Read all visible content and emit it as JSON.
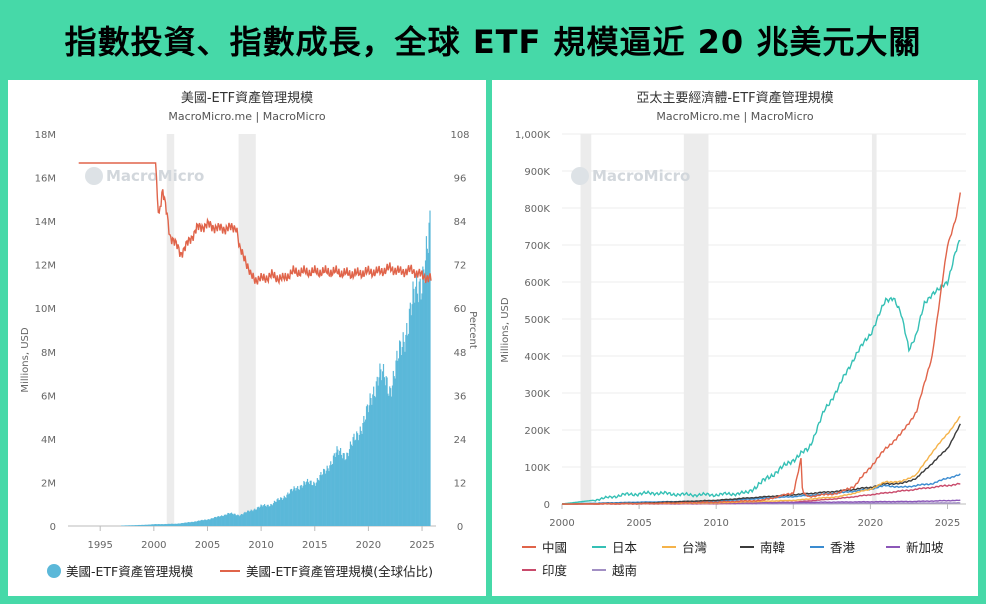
{
  "headline": "指數投資、指數成長，全球 ETF 規模逼近 20 兆美元大關",
  "colors": {
    "background": "#46d9a8",
    "bar_blue": "#5bb8d9",
    "share_red": "#e0644a",
    "recession_gray": "#ececec"
  },
  "chart_data": [
    {
      "type": "bar",
      "title": "美國-ETF資產管理規模",
      "subtitle": "MacroMicro.me | MacroMicro",
      "watermark": "MacroMicro",
      "ylabel": "Millions, USD",
      "y2label": "Percent",
      "ylim": [
        0,
        18000000
      ],
      "y2lim": [
        0,
        108
      ],
      "y_ticks": [
        "0",
        "2M",
        "4M",
        "6M",
        "8M",
        "10M",
        "12M",
        "14M",
        "16M",
        "18M"
      ],
      "y2_ticks": [
        "0",
        "12",
        "24",
        "36",
        "48",
        "60",
        "72",
        "84",
        "96",
        "108"
      ],
      "x_ticks": [
        "1995",
        "2000",
        "2005",
        "2010",
        "2015",
        "2020",
        "2025"
      ],
      "xlim": [
        1992.0,
        2026.3
      ],
      "recessions": [
        [
          2001.2,
          2001.9
        ],
        [
          2007.9,
          2009.5
        ]
      ],
      "series": [
        {
          "name": "美國-ETF資產管理規模",
          "type": "bar",
          "color": "#5bb8d9",
          "points": [
            [
              1993,
              0
            ],
            [
              1995,
              0
            ],
            [
              1997,
              20000
            ],
            [
              1999,
              50000
            ],
            [
              2000,
              80000
            ],
            [
              2001,
              90000
            ],
            [
              2002,
              100000
            ],
            [
              2003,
              150000
            ],
            [
              2004,
              220000
            ],
            [
              2005,
              300000
            ],
            [
              2006,
              420000
            ],
            [
              2007,
              580000
            ],
            [
              2008,
              500000
            ],
            [
              2009,
              700000
            ],
            [
              2010,
              900000
            ],
            [
              2011,
              1000000
            ],
            [
              2012,
              1300000
            ],
            [
              2013,
              1650000
            ],
            [
              2014,
              1950000
            ],
            [
              2015,
              2000000
            ],
            [
              2016,
              2500000
            ],
            [
              2017,
              3350000
            ],
            [
              2018,
              3300000
            ],
            [
              2019,
              4200000
            ],
            [
              2020,
              5300000
            ],
            [
              2021,
              7100000
            ],
            [
              2022,
              6300000
            ],
            [
              2023,
              8000000
            ],
            [
              2024,
              10000000
            ],
            [
              2025,
              11500000
            ],
            [
              2025.5,
              12500000
            ],
            [
              2025.8,
              13500000
            ]
          ]
        },
        {
          "name": "美國-ETF資產管理規模(全球佔比)",
          "type": "line",
          "axis": "right",
          "color": "#e0644a",
          "points": [
            [
              1993,
              100
            ],
            [
              1999,
              100
            ],
            [
              2000.2,
              100
            ],
            [
              2000.3,
              90
            ],
            [
              2000.5,
              86
            ],
            [
              2000.8,
              93
            ],
            [
              2001.2,
              86
            ],
            [
              2001.5,
              80
            ],
            [
              2001.8,
              79
            ],
            [
              2002.5,
              75
            ],
            [
              2003.2,
              78
            ],
            [
              2004,
              82
            ],
            [
              2005,
              83
            ],
            [
              2006,
              82
            ],
            [
              2007,
              82
            ],
            [
              2007.7,
              82.5
            ],
            [
              2008,
              76
            ],
            [
              2008.5,
              74
            ],
            [
              2009,
              69
            ],
            [
              2009.5,
              68
            ],
            [
              2010,
              68
            ],
            [
              2011,
              69
            ],
            [
              2012,
              68
            ],
            [
              2013,
              70
            ],
            [
              2014,
              70
            ],
            [
              2015,
              70
            ],
            [
              2016,
              70
            ],
            [
              2017,
              70
            ],
            [
              2018,
              69.5
            ],
            [
              2019,
              69.5
            ],
            [
              2020,
              70
            ],
            [
              2021,
              70
            ],
            [
              2022,
              71
            ],
            [
              2023,
              70
            ],
            [
              2024,
              70.5
            ],
            [
              2025,
              69
            ],
            [
              2025.9,
              68
            ]
          ]
        }
      ],
      "legend": [
        {
          "label": "美國-ETF資產管理規模",
          "color": "#5bb8d9",
          "symbol": "circle"
        },
        {
          "label": "美國-ETF資產管理規模(全球佔比)",
          "color": "#e0644a",
          "symbol": "line"
        }
      ]
    },
    {
      "type": "line",
      "title": "亞太主要經濟體-ETF資產管理規模",
      "subtitle": "MacroMicro.me | MacroMicro",
      "watermark": "MacroMicro",
      "ylabel": "Millions, USD",
      "ylim": [
        0,
        1000000
      ],
      "y_ticks": [
        "0",
        "100K",
        "200K",
        "300K",
        "400K",
        "500K",
        "600K",
        "700K",
        "800K",
        "900K",
        "1,000K"
      ],
      "x_ticks": [
        "2000",
        "2005",
        "2010",
        "2015",
        "2020",
        "2025"
      ],
      "xlim": [
        2000,
        2026.2
      ],
      "recessions": [
        [
          2001.2,
          2001.9
        ],
        [
          2007.9,
          2009.5
        ],
        [
          2020.1,
          2020.4
        ]
      ],
      "series": [
        {
          "name": "中國",
          "color": "#e0644a",
          "points": [
            [
              2000,
              0
            ],
            [
              2005,
              1000
            ],
            [
              2010,
              5000
            ],
            [
              2013,
              10000
            ],
            [
              2015,
              30000
            ],
            [
              2015.5,
              120000
            ],
            [
              2015.6,
              30000
            ],
            [
              2016,
              20000
            ],
            [
              2017,
              25000
            ],
            [
              2018,
              30000
            ],
            [
              2019,
              50000
            ],
            [
              2020,
              100000
            ],
            [
              2021,
              150000
            ],
            [
              2022,
              190000
            ],
            [
              2023,
              250000
            ],
            [
              2024,
              400000
            ],
            [
              2025,
              700000
            ],
            [
              2025.6,
              780000
            ],
            [
              2025.9,
              860000
            ]
          ]
        },
        {
          "name": "日本",
          "color": "#35c0b5",
          "points": [
            [
              2000,
              0
            ],
            [
              2002,
              10000
            ],
            [
              2004,
              25000
            ],
            [
              2006,
              30000
            ],
            [
              2008,
              25000
            ],
            [
              2010,
              25000
            ],
            [
              2012,
              30000
            ],
            [
              2013,
              60000
            ],
            [
              2014,
              90000
            ],
            [
              2015,
              120000
            ],
            [
              2016,
              150000
            ],
            [
              2017,
              250000
            ],
            [
              2018,
              320000
            ],
            [
              2019,
              400000
            ],
            [
              2020,
              460000
            ],
            [
              2021,
              550000
            ],
            [
              2021.5,
              560000
            ],
            [
              2022,
              510000
            ],
            [
              2022.5,
              420000
            ],
            [
              2023,
              460000
            ],
            [
              2023.5,
              540000
            ],
            [
              2024,
              570000
            ],
            [
              2024.5,
              580000
            ],
            [
              2025,
              600000
            ],
            [
              2025.5,
              680000
            ],
            [
              2025.9,
              720000
            ]
          ]
        },
        {
          "name": "台灣",
          "color": "#f5b34a",
          "points": [
            [
              2000,
              0
            ],
            [
              2005,
              1000
            ],
            [
              2010,
              3000
            ],
            [
              2015,
              10000
            ],
            [
              2018,
              20000
            ],
            [
              2020,
              40000
            ],
            [
              2021,
              60000
            ],
            [
              2022,
              60000
            ],
            [
              2023,
              80000
            ],
            [
              2024,
              140000
            ],
            [
              2025,
              190000
            ],
            [
              2025.9,
              240000
            ]
          ]
        },
        {
          "name": "南韓",
          "color": "#3b3b3b",
          "points": [
            [
              2000,
              0
            ],
            [
              2005,
              2000
            ],
            [
              2010,
              10000
            ],
            [
              2015,
              25000
            ],
            [
              2018,
              35000
            ],
            [
              2020,
              45000
            ],
            [
              2021,
              55000
            ],
            [
              2022,
              55000
            ],
            [
              2023,
              70000
            ],
            [
              2024,
              110000
            ],
            [
              2025,
              150000
            ],
            [
              2025.9,
              220000
            ]
          ]
        },
        {
          "name": "香港",
          "color": "#3a8bd0",
          "points": [
            [
              2000,
              0
            ],
            [
              2005,
              5000
            ],
            [
              2010,
              8000
            ],
            [
              2015,
              20000
            ],
            [
              2018,
              30000
            ],
            [
              2020,
              40000
            ],
            [
              2021,
              50000
            ],
            [
              2022,
              45000
            ],
            [
              2023,
              50000
            ],
            [
              2024,
              55000
            ],
            [
              2025,
              70000
            ],
            [
              2025.9,
              80000
            ]
          ]
        },
        {
          "name": "新加坡",
          "color": "#8c57b8",
          "points": [
            [
              2000,
              0
            ],
            [
              2010,
              2000
            ],
            [
              2015,
              4000
            ],
            [
              2020,
              6000
            ],
            [
              2023,
              7000
            ],
            [
              2025.9,
              10000
            ]
          ]
        },
        {
          "name": "印度",
          "color": "#c94a6b",
          "points": [
            [
              2000,
              0
            ],
            [
              2010,
              1000
            ],
            [
              2015,
              5000
            ],
            [
              2018,
              15000
            ],
            [
              2020,
              25000
            ],
            [
              2022,
              35000
            ],
            [
              2023,
              40000
            ],
            [
              2024,
              45000
            ],
            [
              2025,
              50000
            ],
            [
              2025.9,
              55000
            ]
          ]
        },
        {
          "name": "越南",
          "color": "#a28fc4",
          "points": [
            [
              2000,
              0
            ],
            [
              2015,
              1000
            ],
            [
              2020,
              2000
            ],
            [
              2025.9,
              3000
            ]
          ]
        }
      ],
      "legend": [
        {
          "label": "中國",
          "color": "#e0644a"
        },
        {
          "label": "日本",
          "color": "#35c0b5"
        },
        {
          "label": "台灣",
          "color": "#f5b34a"
        },
        {
          "label": "南韓",
          "color": "#3b3b3b"
        },
        {
          "label": "香港",
          "color": "#3a8bd0"
        },
        {
          "label": "新加坡",
          "color": "#8c57b8"
        },
        {
          "label": "印度",
          "color": "#c94a6b"
        },
        {
          "label": "越南",
          "color": "#a28fc4"
        }
      ]
    }
  ]
}
